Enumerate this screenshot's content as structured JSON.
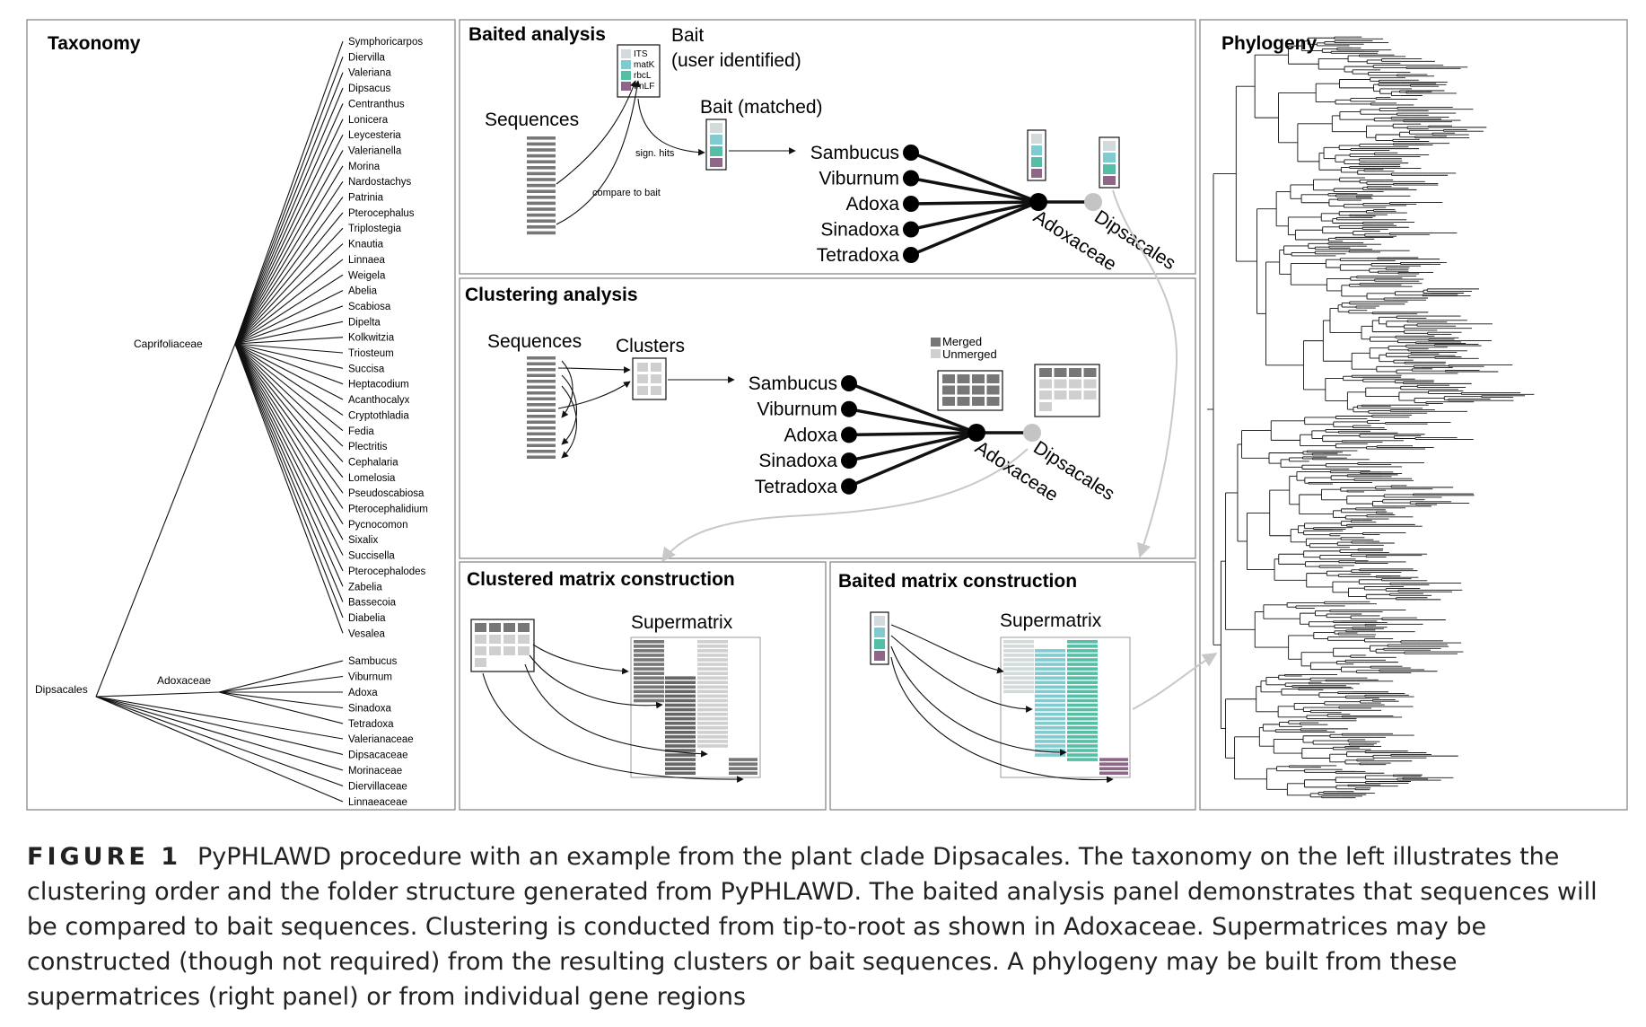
{
  "panels": {
    "taxonomy": "Taxonomy",
    "baited": "Baited analysis",
    "clustering": "Clustering analysis",
    "clustered_matrix": "Clustered matrix construction",
    "baited_matrix": "Baited matrix construction",
    "phylogeny": "Phylogeny"
  },
  "taxonomy": {
    "root": "Dipsacales",
    "caprifoliaceae": "Caprifoliaceae",
    "adoxaceae": "Adoxaceae",
    "capri_genera": [
      "Symphoricarpos",
      "Diervilla",
      "Valeriana",
      "Dipsacus",
      "Centranthus",
      "Lonicera",
      "Leycesteria",
      "Valerianella",
      "Morina",
      "Nardostachys",
      "Patrinia",
      "Pterocephalus",
      "Triplostegia",
      "Knautia",
      "Linnaea",
      "Weigela",
      "Abelia",
      "Scabiosa",
      "Dipelta",
      "Kolkwitzia",
      "Triosteum",
      "Succisa",
      "Heptacodium",
      "Acanthocalyx",
      "Cryptothladia",
      "Fedia",
      "Plectritis",
      "Cephalaria",
      "Lomelosia",
      "Pseudoscabiosa",
      "Pterocephalidium",
      "Pycnocomon",
      "Sixalix",
      "Succisella",
      "Pterocephalodes",
      "Zabelia",
      "Bassecoia",
      "Diabelia",
      "Vesalea"
    ],
    "adox_genera": [
      "Sambucus",
      "Viburnum",
      "Adoxa",
      "Sinadoxa",
      "Tetradoxa"
    ],
    "families": [
      "Valerianaceae",
      "Dipsacaceae",
      "Morinaceae",
      "Diervillaceae",
      "Linnaeaceae"
    ]
  },
  "baited": {
    "sequences": "Sequences",
    "bait_title": "Bait",
    "bait_sub": "(user identified)",
    "bait_genes": [
      "ITS",
      "matK",
      "rbcL",
      "trnLF"
    ],
    "bait_matched": "Bait (matched)",
    "sign_hits": "sign. hits",
    "compare": "compare to bait",
    "genera": [
      "Sambucus",
      "Viburnum",
      "Adoxa",
      "Sinadoxa",
      "Tetradoxa"
    ],
    "family": "Adoxaceae",
    "order": "Dipsacales"
  },
  "clustering": {
    "sequences": "Sequences",
    "clusters": "Clusters",
    "merged": "Merged",
    "unmerged": "Unmerged",
    "genera": [
      "Sambucus",
      "Viburnum",
      "Adoxa",
      "Sinadoxa",
      "Tetradoxa"
    ],
    "family": "Adoxaceae",
    "order": "Dipsacales"
  },
  "clustered_matrix": {
    "supermatrix": "Supermatrix"
  },
  "baited_matrix": {
    "supermatrix": "Supermatrix"
  },
  "colors": {
    "its": "#d3dadb",
    "matk": "#7fcbd0",
    "rbcl": "#55bfa6",
    "trnlf": "#8e6788",
    "dark": "#777777",
    "light": "#cfcfcf"
  },
  "caption": {
    "label": "FIGURE 1",
    "text": "PyPHLAWD procedure with an example from the plant clade Dipsacales. The taxonomy on the left illustrates the clustering order and the folder structure generated from PyPHLAWD. The baited analysis panel demonstrates that sequences will be compared to bait sequences. Clustering is conducted from tip-to-root as shown in Adoxaceae. Supermatrices may be constructed (though not required) from the resulting clusters or bait sequences. A phylogeny may be built from these supermatrices (right panel) or from individual gene regions"
  }
}
